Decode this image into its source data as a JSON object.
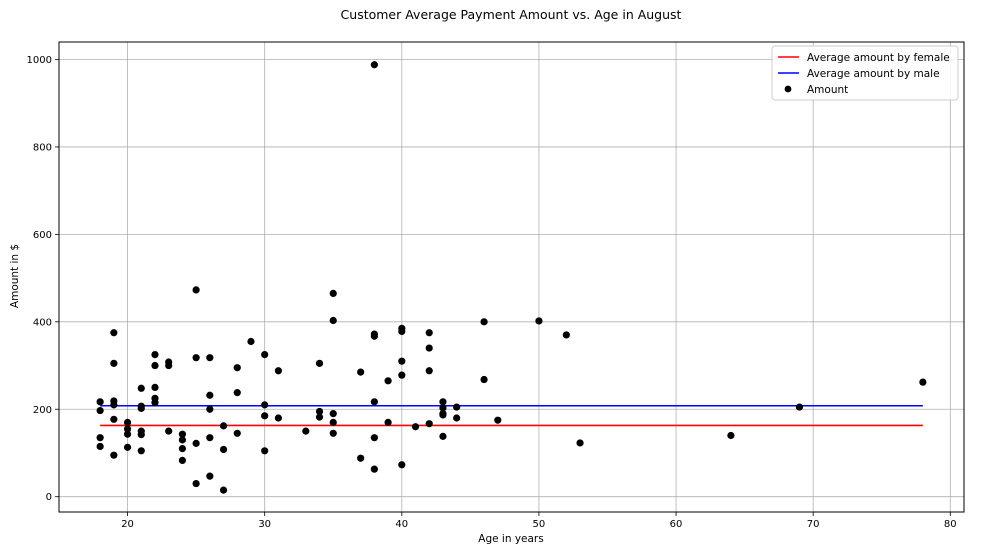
{
  "chart_data": {
    "type": "scatter",
    "title": "Customer Average Payment Amount vs. Age in August",
    "xlabel": "Age in years",
    "ylabel": "Amount in $",
    "xlim": [
      15,
      81
    ],
    "ylim": [
      -35,
      1040
    ],
    "xticks": [
      20,
      30,
      40,
      50,
      60,
      70,
      80
    ],
    "yticks": [
      0,
      200,
      400,
      600,
      800,
      1000
    ],
    "grid": true,
    "legend_position": "top-right",
    "lines": [
      {
        "name": "Average amount by female",
        "color": "#ff0000",
        "x": [
          18,
          78
        ],
        "y": [
          163,
          163
        ]
      },
      {
        "name": "Average amount by male",
        "color": "#0000ff",
        "x": [
          18,
          78
        ],
        "y": [
          208,
          208
        ]
      }
    ],
    "series": [
      {
        "name": "Amount",
        "color": "#000000",
        "points": [
          [
            18,
            217
          ],
          [
            18,
            197
          ],
          [
            18,
            135
          ],
          [
            18,
            115
          ],
          [
            19,
            375
          ],
          [
            19,
            305
          ],
          [
            19,
            219
          ],
          [
            19,
            210
          ],
          [
            19,
            177
          ],
          [
            19,
            95
          ],
          [
            20,
            170
          ],
          [
            20,
            155
          ],
          [
            20,
            143
          ],
          [
            20,
            113
          ],
          [
            21,
            248
          ],
          [
            21,
            207
          ],
          [
            21,
            202
          ],
          [
            21,
            150
          ],
          [
            21,
            142
          ],
          [
            21,
            105
          ],
          [
            22,
            325
          ],
          [
            22,
            300
          ],
          [
            22,
            250
          ],
          [
            22,
            225
          ],
          [
            22,
            215
          ],
          [
            23,
            308
          ],
          [
            23,
            300
          ],
          [
            23,
            150
          ],
          [
            24,
            143
          ],
          [
            24,
            130
          ],
          [
            24,
            110
          ],
          [
            24,
            83
          ],
          [
            25,
            473
          ],
          [
            25,
            318
          ],
          [
            25,
            122
          ],
          [
            25,
            30
          ],
          [
            26,
            318
          ],
          [
            26,
            232
          ],
          [
            26,
            200
          ],
          [
            26,
            135
          ],
          [
            26,
            47
          ],
          [
            27,
            162
          ],
          [
            27,
            108
          ],
          [
            27,
            15
          ],
          [
            28,
            295
          ],
          [
            28,
            238
          ],
          [
            28,
            145
          ],
          [
            29,
            355
          ],
          [
            30,
            325
          ],
          [
            30,
            210
          ],
          [
            30,
            185
          ],
          [
            30,
            105
          ],
          [
            31,
            288
          ],
          [
            31,
            180
          ],
          [
            33,
            150
          ],
          [
            34,
            305
          ],
          [
            34,
            195
          ],
          [
            34,
            182
          ],
          [
            35,
            465
          ],
          [
            35,
            403
          ],
          [
            35,
            190
          ],
          [
            35,
            170
          ],
          [
            35,
            145
          ],
          [
            37,
            285
          ],
          [
            37,
            88
          ],
          [
            38,
            988
          ],
          [
            38,
            372
          ],
          [
            38,
            367
          ],
          [
            38,
            217
          ],
          [
            38,
            135
          ],
          [
            38,
            63
          ],
          [
            39,
            265
          ],
          [
            39,
            170
          ],
          [
            40,
            385
          ],
          [
            40,
            378
          ],
          [
            40,
            310
          ],
          [
            40,
            278
          ],
          [
            40,
            73
          ],
          [
            41,
            160
          ],
          [
            42,
            375
          ],
          [
            42,
            340
          ],
          [
            42,
            288
          ],
          [
            42,
            167
          ],
          [
            43,
            217
          ],
          [
            43,
            203
          ],
          [
            43,
            190
          ],
          [
            43,
            187
          ],
          [
            43,
            138
          ],
          [
            44,
            205
          ],
          [
            44,
            180
          ],
          [
            46,
            400
          ],
          [
            46,
            268
          ],
          [
            47,
            175
          ],
          [
            50,
            402
          ],
          [
            52,
            370
          ],
          [
            53,
            123
          ],
          [
            64,
            140
          ],
          [
            69,
            205
          ],
          [
            78,
            262
          ]
        ]
      }
    ]
  }
}
